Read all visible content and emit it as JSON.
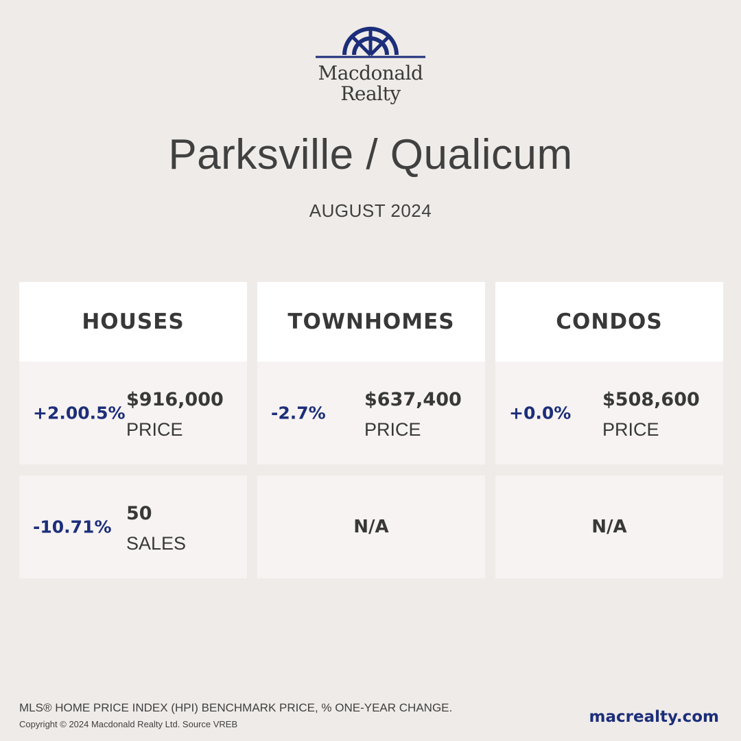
{
  "brand": {
    "line1": "Macdonald",
    "line2": "Realty",
    "color": "#1c2e7a"
  },
  "header": {
    "title": "Parksville / Qualicum",
    "subtitle": "AUGUST 2024"
  },
  "columns": [
    {
      "title": "HOUSES",
      "price": {
        "change": "+2.00.5%",
        "value": "$916,000",
        "label": "PRICE"
      },
      "sales": {
        "change": "-10.71%",
        "value": "50",
        "label": "SALES"
      }
    },
    {
      "title": "TOWNHOMES",
      "price": {
        "change": "-2.7%",
        "value": "$637,400",
        "label": "PRICE"
      },
      "sales": {
        "na": "N/A"
      }
    },
    {
      "title": "CONDOS",
      "price": {
        "change": "+0.0%",
        "value": "$508,600",
        "label": "PRICE"
      },
      "sales": {
        "na": "N/A"
      }
    }
  ],
  "footer": {
    "note": "MLS® HOME PRICE INDEX (HPI) BENCHMARK PRICE, % ONE-YEAR CHANGE.",
    "copyright": "Copyright © 2024 Macdonald Realty Ltd. Source VREB",
    "url": "macrealty.com"
  },
  "colors": {
    "background": "#efebe8",
    "accent": "#1c2e7a",
    "header_bg": "#ffffff",
    "cell_bg": "#f7f3f2"
  }
}
